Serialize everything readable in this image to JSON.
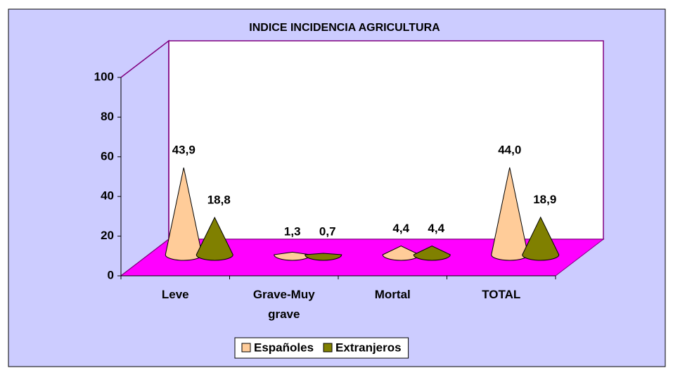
{
  "chart_data": {
    "type": "cone3d",
    "title": "INDICE INCIDENCIA AGRICULTURA",
    "categories": [
      "Leve",
      "Grave-Muy grave",
      "Mortal",
      "TOTAL"
    ],
    "series": [
      {
        "name": "Españoles",
        "color": "#ffcc99",
        "values": [
          43.9,
          1.3,
          4.4,
          44.0
        ],
        "value_labels": [
          "43,9",
          "1,3",
          "4,4",
          "44,0"
        ]
      },
      {
        "name": "Extranjeros",
        "color": "#808000",
        "values": [
          18.8,
          0.7,
          4.4,
          18.9
        ],
        "value_labels": [
          "18,8",
          "0,7",
          "4,4",
          "18,9"
        ]
      }
    ],
    "ylim": [
      0,
      100
    ],
    "yticks": [
      0,
      20,
      40,
      60,
      80,
      100
    ],
    "floor_color": "#ff00ff",
    "background": "#ccccff",
    "legend": "bottom"
  }
}
